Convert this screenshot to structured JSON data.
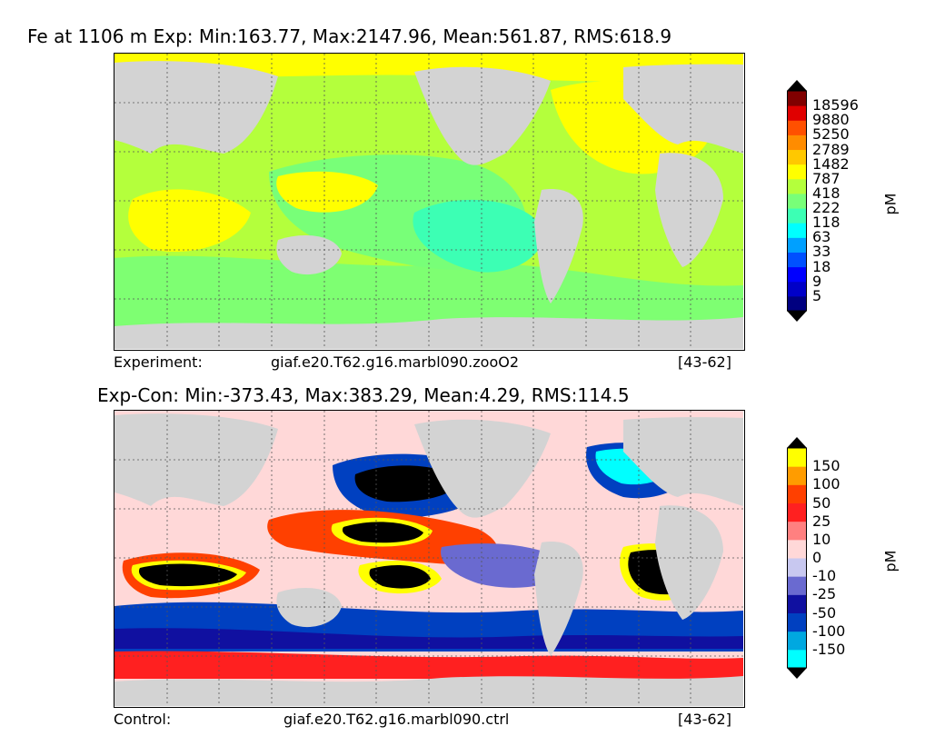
{
  "panels": [
    {
      "title": "Fe at 1106 m Exp: Min:163.77, Max:2147.96, Mean:561.87, RMS:618.9",
      "caption_left": "Experiment:",
      "caption_center": "giaf.e20.T62.g16.marbl090.zooO2",
      "caption_right": "[43-62]",
      "unit": "pM",
      "colorbar_labels": [
        "18596",
        "9880",
        "5250",
        "2789",
        "1482",
        "787",
        "418",
        "222",
        "118",
        "63",
        "33",
        "18",
        "9",
        "5"
      ],
      "colorbar_colors": [
        "#000080",
        "#0000c8",
        "#0000ff",
        "#0050ff",
        "#00a0ff",
        "#00ffff",
        "#3cffb4",
        "#78ff78",
        "#b4ff3c",
        "#ffff00",
        "#ffc800",
        "#ff8c00",
        "#ff5000",
        "#e00000",
        "#800000"
      ],
      "colorbar_upper_extend": "#000000",
      "colorbar_lower_extend": "#000000"
    },
    {
      "title": "Exp-Con: Min:-373.43, Max:383.29, Mean:4.29, RMS:114.5",
      "caption_left": "Control:",
      "caption_center": "giaf.e20.T62.g16.marbl090.ctrl",
      "caption_right": "[43-62]",
      "unit": "pM",
      "colorbar_labels": [
        "150",
        "100",
        "50",
        "25",
        "10",
        "0",
        "-10",
        "-25",
        "-50",
        "-100",
        "-150"
      ],
      "colorbar_colors": [
        "#00ffff",
        "#00a8e0",
        "#0040c0",
        "#1010a0",
        "#6a6ad0",
        "#c8c8f0",
        "#ffd8d8",
        "#ff8080",
        "#ff2020",
        "#ff4000",
        "#ff9c00",
        "#ffff00"
      ],
      "colorbar_upper_extend": "#000000",
      "colorbar_lower_extend": "#000000"
    }
  ]
}
